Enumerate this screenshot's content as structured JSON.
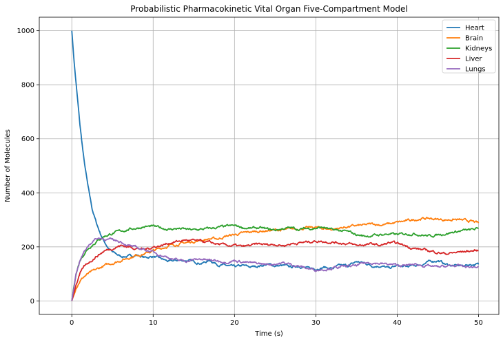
{
  "chart_data": {
    "type": "line",
    "title": "Probabilistic Pharmacokinetic Vital Organ Five-Compartment Model",
    "xlabel": "Time (s)",
    "ylabel": "Number of Molecules",
    "xlim": [
      -4,
      52.5
    ],
    "ylim": [
      -50,
      1050
    ],
    "xticks": [
      0,
      10,
      20,
      30,
      40,
      50
    ],
    "yticks": [
      0,
      200,
      400,
      600,
      800,
      1000
    ],
    "grid": true,
    "legend_position": "top-right",
    "series": [
      {
        "name": "Heart",
        "color": "#1f77b4",
        "x": [
          0,
          0.3,
          0.6,
          1,
          1.5,
          2,
          2.5,
          3,
          3.5,
          4,
          4.5,
          5,
          6,
          7,
          8,
          9,
          10,
          11,
          12,
          13,
          14,
          15,
          16,
          17,
          18,
          19,
          20,
          21,
          22,
          23,
          24,
          25,
          26,
          27,
          28,
          29,
          30,
          31,
          32,
          33,
          34,
          35,
          36,
          37,
          38,
          39,
          40,
          41,
          42,
          43,
          44,
          45,
          46,
          47,
          48,
          49,
          50
        ],
        "y": [
          1000,
          880,
          780,
          650,
          520,
          420,
          340,
          290,
          250,
          220,
          195,
          180,
          165,
          165,
          170,
          160,
          165,
          155,
          145,
          150,
          150,
          145,
          140,
          150,
          135,
          130,
          125,
          130,
          125,
          130,
          135,
          130,
          130,
          125,
          130,
          120,
          120,
          125,
          120,
          130,
          130,
          145,
          140,
          130,
          130,
          120,
          130,
          125,
          130,
          135,
          145,
          150,
          135,
          130,
          130,
          135,
          135
        ]
      },
      {
        "name": "Brain",
        "color": "#ff7f0e",
        "x": [
          0,
          0.5,
          1,
          1.5,
          2,
          3,
          4,
          5,
          6,
          7,
          8,
          9,
          10,
          11,
          12,
          13,
          14,
          15,
          16,
          17,
          18,
          19,
          20,
          21,
          22,
          23,
          24,
          25,
          26,
          27,
          28,
          29,
          30,
          31,
          32,
          33,
          34,
          35,
          36,
          37,
          38,
          39,
          40,
          41,
          42,
          43,
          44,
          45,
          46,
          47,
          48,
          49,
          50
        ],
        "y": [
          0,
          50,
          75,
          90,
          100,
          115,
          130,
          140,
          150,
          160,
          170,
          175,
          185,
          195,
          205,
          210,
          215,
          220,
          225,
          230,
          230,
          240,
          245,
          250,
          255,
          258,
          260,
          262,
          262,
          265,
          268,
          270,
          272,
          268,
          265,
          270,
          275,
          278,
          280,
          285,
          282,
          285,
          290,
          295,
          300,
          305,
          305,
          302,
          300,
          302,
          298,
          295,
          288
        ]
      },
      {
        "name": "Kidneys",
        "color": "#2ca02c",
        "x": [
          0,
          0.5,
          1,
          1.5,
          2,
          3,
          4,
          5,
          6,
          7,
          8,
          9,
          10,
          11,
          12,
          13,
          14,
          15,
          16,
          17,
          18,
          19,
          20,
          21,
          22,
          23,
          24,
          25,
          26,
          27,
          28,
          29,
          30,
          31,
          32,
          33,
          34,
          35,
          36,
          37,
          38,
          39,
          40,
          41,
          42,
          43,
          44,
          45,
          46,
          47,
          48,
          49,
          50
        ],
        "y": [
          0,
          100,
          150,
          175,
          195,
          220,
          240,
          250,
          258,
          265,
          270,
          275,
          275,
          270,
          265,
          268,
          265,
          262,
          265,
          268,
          272,
          275,
          278,
          272,
          268,
          270,
          265,
          262,
          268,
          270,
          265,
          268,
          270,
          272,
          262,
          260,
          255,
          245,
          240,
          242,
          245,
          248,
          245,
          248,
          250,
          245,
          240,
          245,
          250,
          255,
          260,
          262,
          268
        ]
      },
      {
        "name": "Liver",
        "color": "#d62728",
        "x": [
          0,
          0.5,
          1,
          1.5,
          2,
          3,
          4,
          5,
          6,
          7,
          8,
          9,
          10,
          11,
          12,
          13,
          14,
          15,
          16,
          17,
          18,
          19,
          20,
          21,
          22,
          23,
          24,
          25,
          26,
          27,
          28,
          29,
          30,
          31,
          32,
          33,
          34,
          35,
          36,
          37,
          38,
          39,
          40,
          41,
          42,
          43,
          44,
          45,
          46,
          47,
          48,
          49,
          50
        ],
        "y": [
          0,
          60,
          100,
          125,
          140,
          165,
          185,
          195,
          205,
          200,
          195,
          190,
          200,
          205,
          215,
          220,
          225,
          222,
          220,
          215,
          210,
          205,
          205,
          200,
          205,
          210,
          208,
          210,
          205,
          212,
          215,
          218,
          222,
          220,
          218,
          215,
          212,
          205,
          208,
          210,
          205,
          215,
          212,
          205,
          195,
          190,
          185,
          180,
          175,
          178,
          182,
          185,
          186
        ]
      },
      {
        "name": "Lungs",
        "color": "#9467bd",
        "x": [
          0,
          0.5,
          1,
          1.5,
          2,
          2.5,
          3,
          3.5,
          4,
          5,
          6,
          7,
          8,
          9,
          10,
          11,
          12,
          13,
          14,
          15,
          16,
          17,
          18,
          19,
          20,
          21,
          22,
          23,
          24,
          25,
          26,
          27,
          28,
          29,
          30,
          31,
          32,
          33,
          34,
          35,
          36,
          37,
          38,
          39,
          40,
          41,
          42,
          43,
          44,
          45,
          46,
          47,
          48,
          49,
          50
        ],
        "y": [
          0,
          100,
          150,
          180,
          205,
          220,
          230,
          232,
          230,
          225,
          220,
          205,
          195,
          190,
          180,
          170,
          160,
          150,
          148,
          152,
          155,
          150,
          148,
          145,
          150,
          145,
          140,
          138,
          135,
          138,
          140,
          135,
          128,
          120,
          115,
          118,
          122,
          125,
          128,
          130,
          140,
          142,
          138,
          135,
          132,
          130,
          135,
          132,
          128,
          125,
          128,
          130,
          128,
          125,
          125
        ]
      }
    ]
  }
}
